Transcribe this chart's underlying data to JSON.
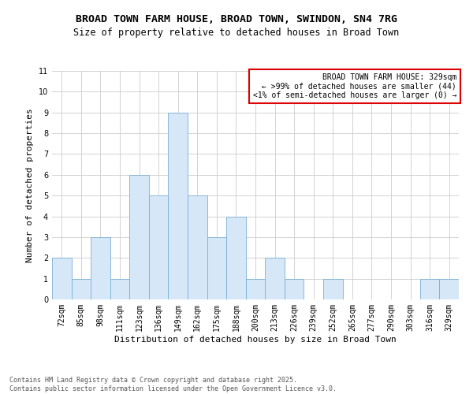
{
  "title": "BROAD TOWN FARM HOUSE, BROAD TOWN, SWINDON, SN4 7RG",
  "subtitle": "Size of property relative to detached houses in Broad Town",
  "xlabel": "Distribution of detached houses by size in Broad Town",
  "ylabel": "Number of detached properties",
  "categories": [
    "72sqm",
    "85sqm",
    "98sqm",
    "111sqm",
    "123sqm",
    "136sqm",
    "149sqm",
    "162sqm",
    "175sqm",
    "188sqm",
    "200sqm",
    "213sqm",
    "226sqm",
    "239sqm",
    "252sqm",
    "265sqm",
    "277sqm",
    "290sqm",
    "303sqm",
    "316sqm",
    "329sqm"
  ],
  "values": [
    2,
    1,
    3,
    1,
    6,
    5,
    9,
    5,
    3,
    4,
    1,
    2,
    1,
    0,
    1,
    0,
    0,
    0,
    0,
    1,
    1
  ],
  "bar_color": "#d6e8f7",
  "bar_edge_color": "#7ab0d4",
  "ylim": [
    0,
    11
  ],
  "yticks": [
    0,
    1,
    2,
    3,
    4,
    5,
    6,
    7,
    8,
    9,
    10,
    11
  ],
  "annotation_box_text": "BROAD TOWN FARM HOUSE: 329sqm\n← >99% of detached houses are smaller (44)\n<1% of semi-detached houses are larger (0) →",
  "annotation_box_color": "#dd0000",
  "footer_line1": "Contains HM Land Registry data © Crown copyright and database right 2025.",
  "footer_line2": "Contains public sector information licensed under the Open Government Licence v3.0.",
  "background_color": "#ffffff",
  "grid_color": "#cccccc",
  "title_fontsize": 9.5,
  "subtitle_fontsize": 8.5,
  "axis_label_fontsize": 8,
  "tick_fontsize": 7,
  "annotation_fontsize": 7,
  "footer_fontsize": 6
}
